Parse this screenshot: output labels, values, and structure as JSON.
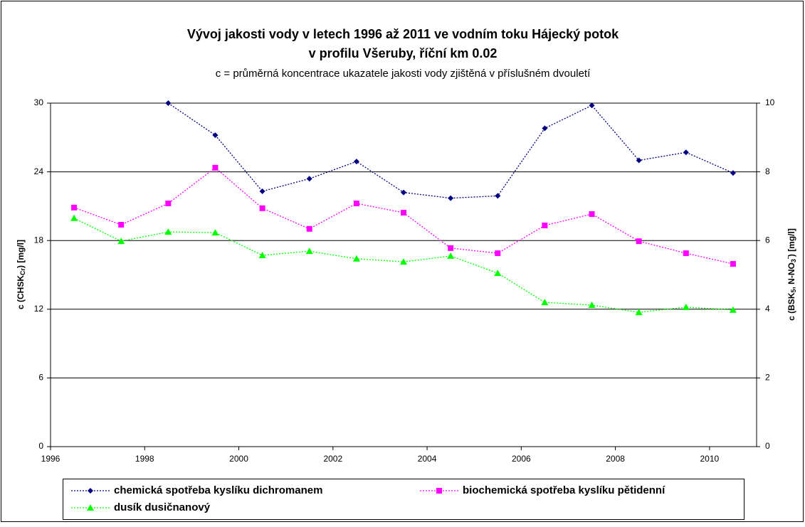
{
  "chart_data": {
    "type": "line",
    "title": [
      "Vývoj jakosti vody v letech 1996 až 2011 ve vodním toku Hájecký potok",
      "v profilu Všeruby, říční km 0.02"
    ],
    "subtitle": "c = průměrná koncentrace ukazatele jakosti vody zjištěná v příslušném dvouletí",
    "y_label": [
      "c (CHSK",
      "Cr",
      ") [mg/l]"
    ],
    "y2_label": [
      "c (BSK",
      "5",
      ", N-NO",
      "3",
      "-",
      ") [mg/l]"
    ],
    "x": [
      1996.5,
      1997.5,
      1998.5,
      1999.5,
      2000.5,
      2001.5,
      2002.5,
      2003.5,
      2004.5,
      2005.5,
      2006.5,
      2007.5,
      2008.5,
      2009.5,
      2010.5
    ],
    "xlim": [
      1996,
      2011
    ],
    "xticks": [
      1996,
      1998,
      2000,
      2002,
      2004,
      2006,
      2008,
      2010
    ],
    "ylim": [
      0,
      30
    ],
    "yticks": [
      0,
      6,
      12,
      18,
      24,
      30
    ],
    "y2lim": [
      0,
      10
    ],
    "y2ticks": [
      0,
      2,
      4,
      6,
      8,
      10
    ],
    "grid": true,
    "series": [
      {
        "name": "chemická spotřeba kyslíku dichromanem",
        "color": "#000080",
        "marker": "diamond",
        "values": [
          null,
          null,
          30,
          27.2,
          22.3,
          23.4,
          24.9,
          22.2,
          21.7,
          21.9,
          27.8,
          29.8,
          25.0,
          25.7,
          23.9
        ]
      },
      {
        "name": "biochemická spotřeba kyslíku pětidenní",
        "color": "#ff00ff",
        "marker": "square",
        "axis": "y2",
        "values": [
          6.96,
          6.46,
          7.08,
          8.12,
          6.94,
          6.34,
          7.08,
          6.81,
          5.78,
          5.63,
          6.44,
          6.77,
          5.98,
          5.63,
          5.32
        ]
      },
      {
        "name": "dusík dusičnanový",
        "color": "#00ff00",
        "marker": "triangle",
        "axis": "y2",
        "values": [
          6.65,
          5.98,
          6.25,
          6.23,
          5.57,
          5.69,
          5.47,
          5.38,
          5.55,
          5.05,
          4.2,
          4.12,
          3.91,
          4.06,
          3.98
        ]
      }
    ]
  }
}
